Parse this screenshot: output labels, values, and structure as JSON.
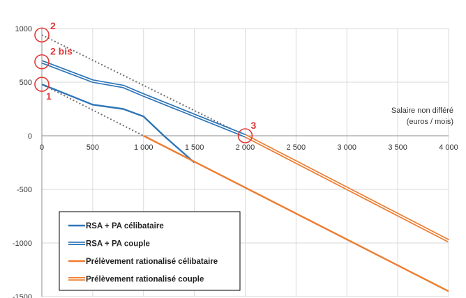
{
  "chart_data": {
    "type": "line",
    "xlabel": [
      "Salaire non différé",
      "(euros / mois)"
    ],
    "xlim": [
      0,
      4000
    ],
    "ylim": [
      -1500,
      1000
    ],
    "x_ticks": [
      0,
      500,
      1000,
      1500,
      2000,
      2500,
      3000,
      3500,
      4000
    ],
    "x_tick_labels": [
      "0",
      "500",
      "1 000",
      "1 500",
      "2 000",
      "2 500",
      "3 000",
      "3 500",
      "4 000"
    ],
    "y_ticks": [
      -1500,
      -1000,
      -500,
      0,
      500,
      1000
    ],
    "y_tick_labels": [
      "-1500",
      "-1000",
      "-500",
      "0",
      "500",
      "1000"
    ],
    "grid": true,
    "legend_position": "bottom-left",
    "series": [
      {
        "name": "RSA + PA célibataire",
        "color": "#2e75b6",
        "style": "solid",
        "x": [
          0,
          500,
          800,
          1000,
          1200,
          1500
        ],
        "y": [
          480,
          290,
          250,
          180,
          0,
          -250
        ]
      },
      {
        "name": "RSA + PA couple",
        "color": "#2e75b6",
        "style": "double",
        "x": [
          0,
          500,
          800,
          1000,
          1500,
          2000
        ],
        "y": [
          690,
          510,
          460,
          380,
          190,
          0
        ]
      },
      {
        "name": "Prélèvement rationalisé célibataire",
        "color": "#ed7d31",
        "style": "solid",
        "x": [
          1000,
          4000
        ],
        "y": [
          0,
          -1450
        ]
      },
      {
        "name": "Prélèvement rationalisé couple",
        "color": "#ed7d31",
        "style": "double",
        "x": [
          2000,
          4000
        ],
        "y": [
          0,
          -980
        ]
      }
    ],
    "reference_lines": [
      {
        "x": [
          0,
          1000
        ],
        "y": [
          480,
          0
        ]
      },
      {
        "x": [
          0,
          2000
        ],
        "y": [
          940,
          0
        ]
      }
    ],
    "markers": [
      {
        "label": "1",
        "x": 0,
        "y": 480
      },
      {
        "label": "2",
        "x": 0,
        "y": 940
      },
      {
        "label": "2 bis",
        "x": 0,
        "y": 690
      },
      {
        "label": "3",
        "x": 2000,
        "y": 0
      }
    ]
  }
}
